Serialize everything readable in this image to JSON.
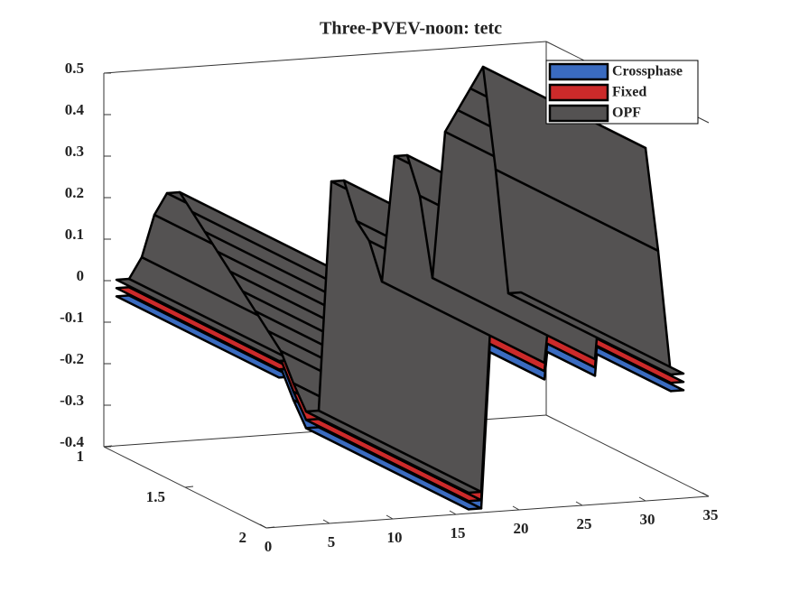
{
  "chart_data": {
    "type": "surface3d",
    "title": "Three-PVEV-noon: tetc",
    "x": [
      1,
      2,
      3,
      4,
      5,
      6,
      7,
      8,
      9,
      10,
      11,
      12,
      13,
      14,
      15,
      16,
      17,
      18,
      19,
      20,
      21,
      22,
      23,
      24,
      25,
      26,
      27,
      28,
      29,
      30,
      31,
      32,
      33
    ],
    "series": [
      {
        "name": "Crossphase",
        "color": "#3a6bc0",
        "values": [
          -0.04,
          -0.04,
          0.01,
          0.11,
          0.16,
          0.16,
          0.11,
          0.06,
          0.01,
          -0.04,
          -0.09,
          -0.14,
          -0.19,
          -0.24,
          -0.32,
          -0.39,
          -0.39,
          0.16,
          0.16,
          0.06,
          0.01,
          -0.09,
          0.21,
          0.21,
          0.11,
          -0.09,
          0.26,
          0.31,
          0.36,
          0.41,
          0.16,
          -0.14,
          -0.14
        ]
      },
      {
        "name": "Fixed",
        "color": "#cc2a2a",
        "values": [
          -0.02,
          -0.02,
          0.03,
          0.13,
          0.18,
          0.18,
          0.13,
          0.08,
          0.03,
          -0.02,
          -0.07,
          -0.12,
          -0.17,
          -0.22,
          -0.3,
          -0.37,
          -0.37,
          0.18,
          0.18,
          0.08,
          0.03,
          -0.07,
          0.23,
          0.23,
          0.13,
          -0.07,
          0.28,
          0.33,
          0.38,
          0.43,
          0.18,
          -0.12,
          -0.12
        ]
      },
      {
        "name": "OPF",
        "color": "#545252",
        "values": [
          0,
          0,
          0.05,
          0.15,
          0.2,
          0.2,
          0.15,
          0.1,
          0.05,
          0,
          -0.05,
          -0.1,
          -0.15,
          -0.2,
          -0.28,
          -0.35,
          -0.35,
          0.2,
          0.2,
          0.1,
          0.05,
          -0.05,
          0.25,
          0.25,
          0.15,
          -0.05,
          0.3,
          0.35,
          0.4,
          0.45,
          0.2,
          -0.1,
          -0.1
        ]
      }
    ],
    "xlim": [
      0,
      35
    ],
    "xticks": [
      0,
      5,
      10,
      15,
      20,
      25,
      30,
      35
    ],
    "ylim": [
      1,
      2
    ],
    "yticks": [
      1,
      1.5,
      2
    ],
    "zlim": [
      -0.4,
      0.5
    ],
    "zticks": [
      -0.4,
      -0.3,
      -0.2,
      -0.1,
      0,
      0.1,
      0.2,
      0.3,
      0.4,
      0.5
    ],
    "legend": "northeast"
  }
}
